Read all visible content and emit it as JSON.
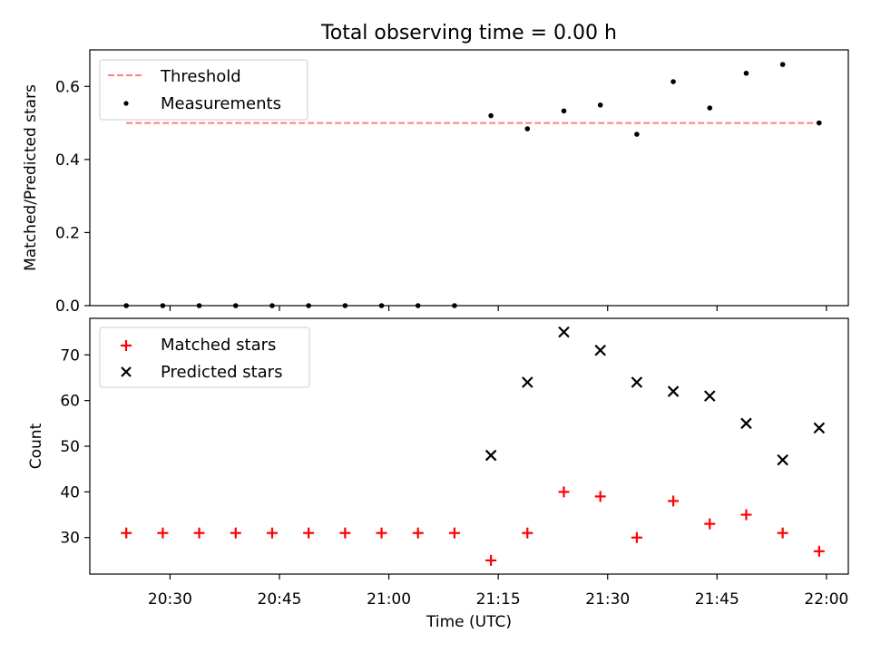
{
  "title": "Total observing time = 0.00 h",
  "colors": {
    "threshold": "#ff7f7f",
    "measurement": "#000000",
    "matched": "#ff0000",
    "predicted": "#000000"
  },
  "chart_data": [
    {
      "type": "scatter",
      "ylabel": "Matched/Predicted stars",
      "ylim": [
        0,
        0.7
      ],
      "yticks": [
        "0.0",
        "0.2",
        "0.4",
        "0.6"
      ],
      "grid": false,
      "legend": "top-left",
      "legend_entries": [
        "Threshold",
        "Measurements"
      ],
      "threshold": {
        "name": "Threshold",
        "value": 0.5,
        "x_range": [
          "20:24",
          "21:59"
        ]
      },
      "series": [
        {
          "name": "Measurements",
          "x": [
            "20:24",
            "20:29",
            "20:34",
            "20:39",
            "20:44",
            "20:49",
            "20:54",
            "20:59",
            "21:04",
            "21:09",
            "21:14",
            "21:19",
            "21:24",
            "21:29",
            "21:34",
            "21:39",
            "21:44",
            "21:49",
            "21:54",
            "21:59"
          ],
          "y": [
            0,
            0,
            0,
            0,
            0,
            0,
            0,
            0,
            0,
            0,
            0.52,
            0.484,
            0.533,
            0.549,
            0.469,
            0.613,
            0.541,
            0.636,
            0.66,
            0.5
          ]
        }
      ]
    },
    {
      "type": "scatter",
      "xlabel": "Time (UTC)",
      "ylabel": "Count",
      "ylim": [
        22,
        78
      ],
      "yticks": [
        "30",
        "40",
        "50",
        "60",
        "70"
      ],
      "xticks": [
        "20:30",
        "20:45",
        "21:00",
        "21:15",
        "21:30",
        "21:45",
        "22:00"
      ],
      "grid": false,
      "legend": "top-left",
      "legend_entries": [
        "Matched stars",
        "Predicted stars"
      ],
      "series": [
        {
          "name": "Matched stars",
          "x": [
            "20:24",
            "20:29",
            "20:34",
            "20:39",
            "20:44",
            "20:49",
            "20:54",
            "20:59",
            "21:04",
            "21:09",
            "21:14",
            "21:19",
            "21:24",
            "21:29",
            "21:34",
            "21:39",
            "21:44",
            "21:49",
            "21:54",
            "21:59"
          ],
          "y": [
            31,
            31,
            31,
            31,
            31,
            31,
            31,
            31,
            31,
            31,
            25,
            31,
            40,
            39,
            30,
            38,
            33,
            35,
            31,
            27
          ]
        },
        {
          "name": "Predicted stars",
          "x": [
            "21:14",
            "21:19",
            "21:24",
            "21:29",
            "21:34",
            "21:39",
            "21:44",
            "21:49",
            "21:54",
            "21:59"
          ],
          "y": [
            48,
            64,
            75,
            71,
            64,
            62,
            61,
            55,
            47,
            54
          ]
        }
      ]
    }
  ]
}
